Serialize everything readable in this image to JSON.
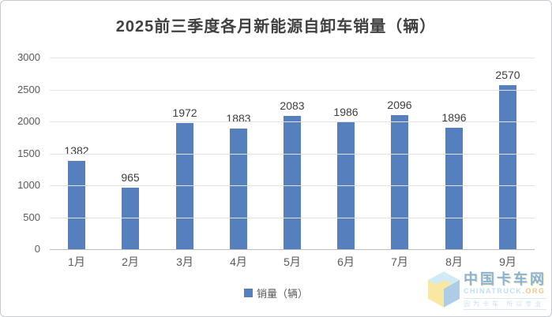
{
  "title": "2025前三季度各月新能源自卸车销量（辆）",
  "legend": {
    "label": "销量（辆）"
  },
  "colors": {
    "bar": "#5580bd",
    "gridline": "#e2e2e2",
    "axis_line": "#bdbdbd",
    "title_text": "#404040",
    "tick_text": "#595959",
    "value_label_text": "#3d3d3d"
  },
  "chart_data": {
    "type": "bar",
    "categories": [
      "1月",
      "2月",
      "3月",
      "4月",
      "5月",
      "6月",
      "7月",
      "8月",
      "9月"
    ],
    "values": [
      1382,
      965,
      1972,
      1883,
      2083,
      1986,
      2096,
      1896,
      2570
    ],
    "series_name": "销量（辆）",
    "title": "2025前三季度各月新能源自卸车销量（辆）",
    "xlabel": "",
    "ylabel": "",
    "ylim": [
      0,
      3000
    ],
    "ytick_step": 500,
    "ytick_labels": [
      "0",
      "500",
      "1000",
      "1500",
      "2000",
      "2500",
      "3000"
    ],
    "grid": true,
    "data_labels": true,
    "legend_position": "bottom"
  },
  "watermark": {
    "name": "中国卡车网",
    "url_main": "CHINATRUCK",
    "url_suffix": ".ORG",
    "tagline": "因为卡车 所以专业"
  }
}
